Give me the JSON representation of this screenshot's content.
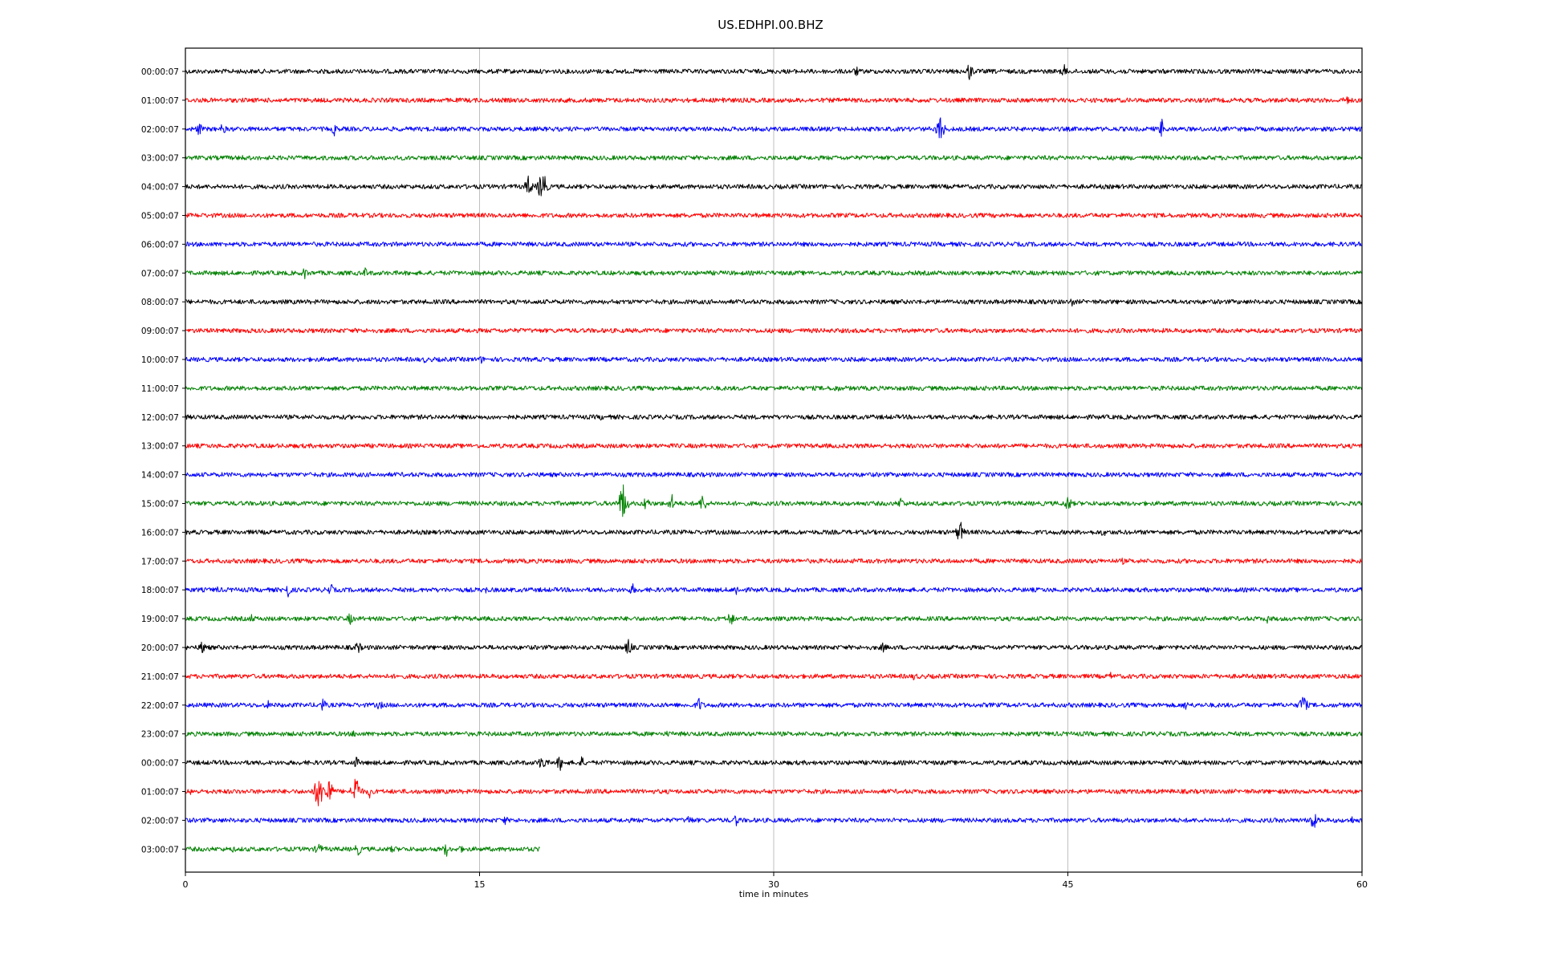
{
  "chart_data": {
    "type": "line",
    "title": "US.EDHPI.00.BHZ",
    "xlabel": "time in minutes",
    "ylabel": "",
    "xlim": [
      0,
      60
    ],
    "x_ticks": [
      0,
      15,
      30,
      45,
      60
    ],
    "grid": "vertical lines at x ticks",
    "legend": "none",
    "row_colors": [
      "#000000",
      "#ff0000",
      "#0000ff",
      "#008000"
    ],
    "rows": [
      {
        "label": "00:00:07",
        "end": 60,
        "events": [
          {
            "t": 34.2,
            "a": 8
          },
          {
            "t": 40.0,
            "a": 14
          },
          {
            "t": 44.8,
            "a": 10
          },
          {
            "t": 47.8,
            "a": 7
          }
        ]
      },
      {
        "label": "01:00:07",
        "end": 60,
        "events": [
          {
            "t": 27.5,
            "a": 8
          },
          {
            "t": 59.2,
            "a": 9
          }
        ]
      },
      {
        "label": "02:00:07",
        "end": 60,
        "events": [
          {
            "t": 0.7,
            "a": 10
          },
          {
            "t": 1.9,
            "a": 9
          },
          {
            "t": 7.6,
            "a": 9
          },
          {
            "t": 38.5,
            "a": 22
          },
          {
            "t": 49.8,
            "a": 14
          }
        ]
      },
      {
        "label": "03:00:07",
        "end": 60,
        "events": [
          {
            "t": 2.9,
            "a": 5
          }
        ]
      },
      {
        "label": "04:00:07",
        "end": 60,
        "events": [
          {
            "t": 17.5,
            "a": 16
          },
          {
            "t": 18.2,
            "a": 30
          }
        ]
      },
      {
        "label": "05:00:07",
        "end": 60,
        "events": []
      },
      {
        "label": "06:00:07",
        "end": 60,
        "events": []
      },
      {
        "label": "07:00:07",
        "end": 60,
        "events": [
          {
            "t": 6.1,
            "a": 9
          },
          {
            "t": 9.2,
            "a": 8
          }
        ]
      },
      {
        "label": "08:00:07",
        "end": 60,
        "events": [
          {
            "t": 45.2,
            "a": 7
          }
        ]
      },
      {
        "label": "09:00:07",
        "end": 60,
        "events": []
      },
      {
        "label": "10:00:07",
        "end": 60,
        "events": [
          {
            "t": 12.2,
            "a": 5
          },
          {
            "t": 15.1,
            "a": 6
          }
        ]
      },
      {
        "label": "11:00:07",
        "end": 60,
        "events": [
          {
            "t": 33.2,
            "a": 7
          }
        ]
      },
      {
        "label": "12:00:07",
        "end": 60,
        "events": [
          {
            "t": 21.2,
            "a": 5
          }
        ]
      },
      {
        "label": "13:00:07",
        "end": 60,
        "events": []
      },
      {
        "label": "14:00:07",
        "end": 60,
        "events": []
      },
      {
        "label": "15:00:07",
        "end": 60,
        "events": [
          {
            "t": 22.3,
            "a": 32
          },
          {
            "t": 23.5,
            "a": 12
          },
          {
            "t": 24.8,
            "a": 13
          },
          {
            "t": 26.4,
            "a": 15
          },
          {
            "t": 36.5,
            "a": 10
          },
          {
            "t": 45.0,
            "a": 13
          }
        ]
      },
      {
        "label": "16:00:07",
        "end": 60,
        "events": [
          {
            "t": 39.5,
            "a": 18
          },
          {
            "t": 46.8,
            "a": 7
          }
        ]
      },
      {
        "label": "17:00:07",
        "end": 60,
        "events": [
          {
            "t": 47.8,
            "a": 5
          }
        ]
      },
      {
        "label": "18:00:07",
        "end": 60,
        "events": [
          {
            "t": 1.6,
            "a": 6
          },
          {
            "t": 5.2,
            "a": 13
          },
          {
            "t": 7.4,
            "a": 10
          },
          {
            "t": 15.3,
            "a": 6
          },
          {
            "t": 22.8,
            "a": 9
          },
          {
            "t": 28.1,
            "a": 9
          }
        ]
      },
      {
        "label": "19:00:07",
        "end": 60,
        "events": [
          {
            "t": 3.4,
            "a": 7
          },
          {
            "t": 8.4,
            "a": 9
          },
          {
            "t": 13.8,
            "a": 5
          },
          {
            "t": 27.8,
            "a": 12
          },
          {
            "t": 55.2,
            "a": 7
          }
        ]
      },
      {
        "label": "20:00:07",
        "end": 60,
        "events": [
          {
            "t": 0.9,
            "a": 12
          },
          {
            "t": 8.8,
            "a": 10
          },
          {
            "t": 22.6,
            "a": 13
          },
          {
            "t": 35.6,
            "a": 8
          }
        ]
      },
      {
        "label": "21:00:07",
        "end": 60,
        "events": [
          {
            "t": 37.2,
            "a": 7
          },
          {
            "t": 47.2,
            "a": 6
          }
        ]
      },
      {
        "label": "22:00:07",
        "end": 60,
        "events": [
          {
            "t": 4.2,
            "a": 7
          },
          {
            "t": 7.0,
            "a": 10
          },
          {
            "t": 9.9,
            "a": 8
          },
          {
            "t": 26.2,
            "a": 11
          },
          {
            "t": 51.0,
            "a": 8
          },
          {
            "t": 57.0,
            "a": 18
          }
        ]
      },
      {
        "label": "23:00:07",
        "end": 60,
        "events": [
          {
            "t": 8.6,
            "a": 6
          },
          {
            "t": 24.6,
            "a": 5
          }
        ]
      },
      {
        "label": "00:00:07",
        "end": 60,
        "events": [
          {
            "t": 8.7,
            "a": 9
          },
          {
            "t": 18.2,
            "a": 14
          },
          {
            "t": 19.1,
            "a": 12
          },
          {
            "t": 20.2,
            "a": 9
          }
        ]
      },
      {
        "label": "01:00:07",
        "end": 60,
        "events": [
          {
            "t": 0.3,
            "a": 6
          },
          {
            "t": 6.8,
            "a": 32
          },
          {
            "t": 7.3,
            "a": 26
          },
          {
            "t": 8.7,
            "a": 28
          },
          {
            "t": 9.4,
            "a": 9
          }
        ]
      },
      {
        "label": "02:00:07",
        "end": 60,
        "events": [
          {
            "t": 16.3,
            "a": 7
          },
          {
            "t": 25.7,
            "a": 9
          },
          {
            "t": 28.1,
            "a": 9
          },
          {
            "t": 57.5,
            "a": 16
          },
          {
            "t": 59.5,
            "a": 6
          }
        ]
      },
      {
        "label": "03:00:07",
        "end": 18.1,
        "events": [
          {
            "t": 2.4,
            "a": 5
          },
          {
            "t": 6.8,
            "a": 11
          },
          {
            "t": 8.8,
            "a": 10
          },
          {
            "t": 10.6,
            "a": 7
          },
          {
            "t": 13.3,
            "a": 11
          },
          {
            "t": 14.0,
            "a": 7
          }
        ]
      }
    ]
  }
}
